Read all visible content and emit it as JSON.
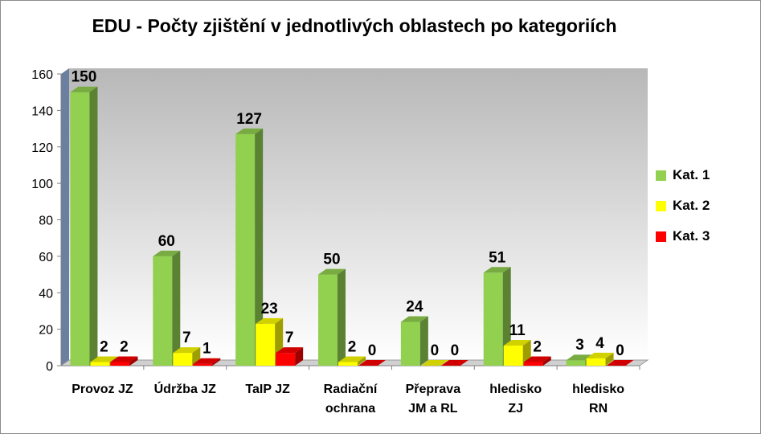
{
  "chart_data": {
    "type": "bar",
    "title": "EDU - Počty zjištění v jednotlivých oblastech po kategoriích",
    "categories": [
      [
        "Provoz JZ"
      ],
      [
        "Údržba JZ"
      ],
      [
        "TaIP JZ"
      ],
      [
        "Radiační",
        "ochrana"
      ],
      [
        "Přeprava",
        "JM a RL"
      ],
      [
        "hledisko",
        "ZJ"
      ],
      [
        "hledisko",
        "RN"
      ]
    ],
    "series": [
      {
        "name": "Kat. 1",
        "color": "#92d050",
        "values": [
          150,
          60,
          127,
          50,
          24,
          51,
          3
        ]
      },
      {
        "name": "Kat. 2",
        "color": "#ffff00",
        "values": [
          2,
          7,
          23,
          2,
          0,
          11,
          4
        ]
      },
      {
        "name": "Kat. 3",
        "color": "#ff0000",
        "values": [
          2,
          1,
          7,
          0,
          0,
          2,
          0
        ]
      }
    ],
    "ylim": [
      0,
      160
    ],
    "yticks": [
      0,
      20,
      40,
      60,
      80,
      100,
      120,
      140,
      160
    ],
    "legend_position": "right",
    "grid": false
  }
}
